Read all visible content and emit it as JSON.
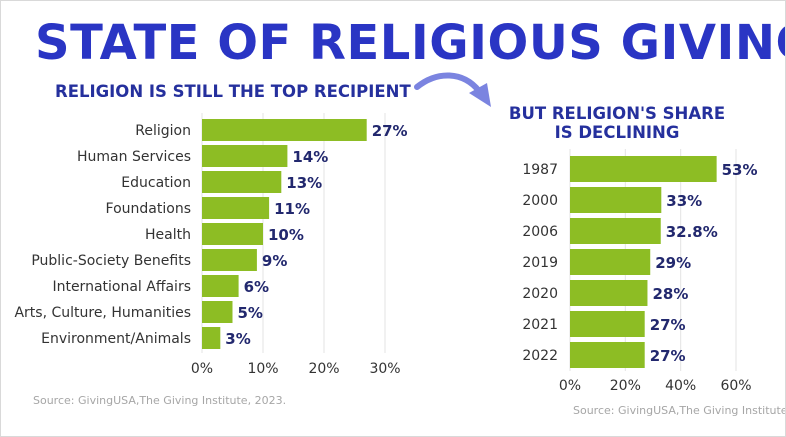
{
  "title": "STATE OF RELIGIOUS GIVING",
  "colors": {
    "title": "#2a35c4",
    "subtitle": "#25309d",
    "bar": "#8dbd24",
    "value_label": "#22286e",
    "arrow": "#7b84e0"
  },
  "chart_data": [
    {
      "type": "bar",
      "orientation": "horizontal",
      "title": "RELIGION IS STILL THE TOP RECIPIENT",
      "categories": [
        "Religion",
        "Human Services",
        "Education",
        "Foundations",
        "Health",
        "Public-Society Benefits",
        "International Affairs",
        "Arts, Culture, Humanities",
        "Environment/Animals"
      ],
      "values": [
        27,
        14,
        13,
        11,
        10,
        9,
        6,
        5,
        3
      ],
      "value_labels": [
        "27%",
        "14%",
        "13%",
        "11%",
        "10%",
        "9%",
        "6%",
        "5%",
        "3%"
      ],
      "xlim": [
        0,
        30
      ],
      "xticks": [
        0,
        10,
        20,
        30
      ],
      "xtick_labels": [
        "0%",
        "10%",
        "20%",
        "30%"
      ],
      "grid": true,
      "source": "Source: GivingUSA,The Giving Institute, 2023."
    },
    {
      "type": "bar",
      "orientation": "horizontal",
      "title": "BUT RELIGION'S SHARE IS DECLINING",
      "categories": [
        "1987",
        "2000",
        "2006",
        "2019",
        "2020",
        "2021",
        "2022"
      ],
      "values": [
        53,
        33,
        32.8,
        29,
        28,
        27,
        27
      ],
      "value_labels": [
        "53%",
        "33%",
        "32.8%",
        "29%",
        "28%",
        "27%",
        "27%"
      ],
      "xlim": [
        0,
        60
      ],
      "xticks": [
        0,
        20,
        40,
        60
      ],
      "xtick_labels": [
        "0%",
        "20%",
        "40%",
        "60%"
      ],
      "grid": true,
      "source": "Source: GivingUSA,The Giving Institute."
    }
  ]
}
